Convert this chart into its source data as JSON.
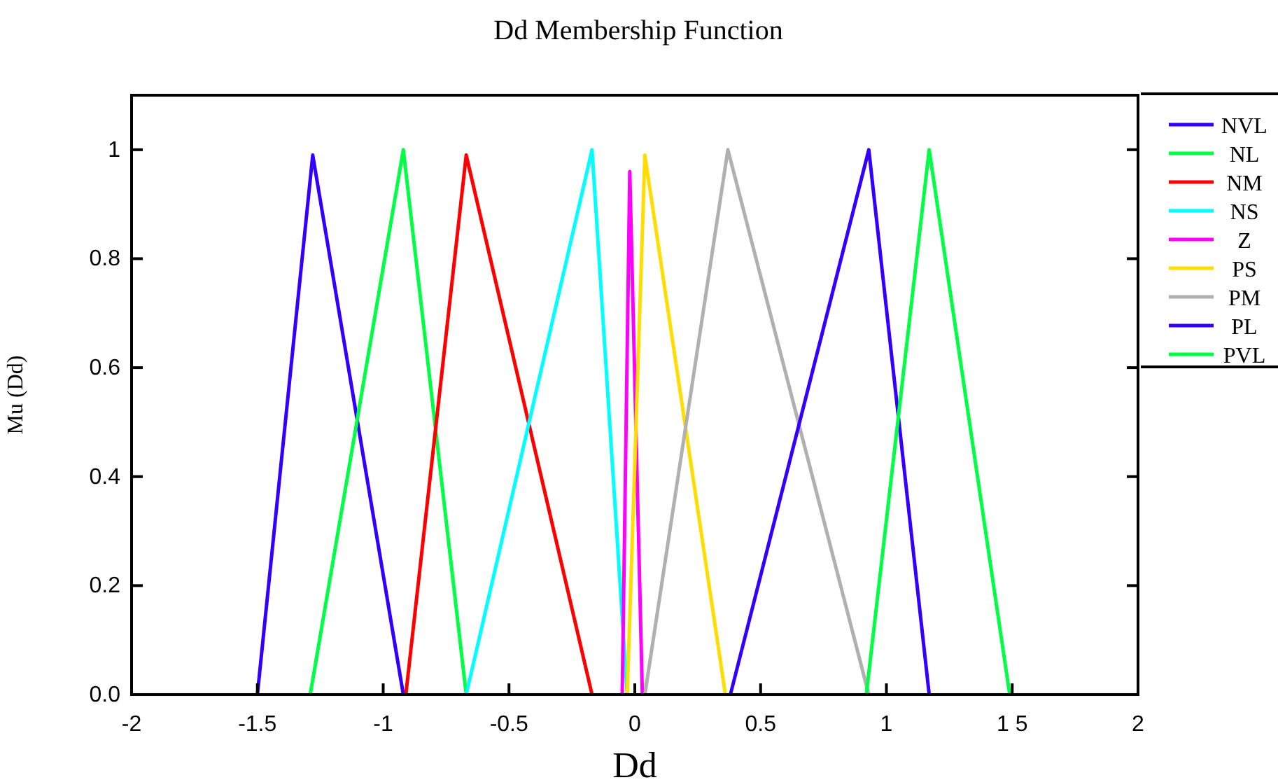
{
  "chart_data": {
    "type": "line",
    "title": "Dd Membership Function",
    "xlabel": "Dd",
    "ylabel": "Mu (Dd)",
    "xlim": [
      -2,
      2
    ],
    "ylim": [
      0,
      1.1
    ],
    "xticks": [
      -2,
      -1.5,
      -1,
      -0.5,
      0,
      0.5,
      1,
      {
        "value": 1.5,
        "label": "1 5"
      },
      2
    ],
    "yticks": [
      {
        "value": 0,
        "label": "0.0"
      },
      0.2,
      0.4,
      0.6,
      0.8,
      1
    ],
    "grid": false,
    "legend": "right",
    "marker": "none",
    "line_style": "solid",
    "series": [
      {
        "name": "NVL",
        "color": "#3300ff",
        "x": [
          -1.5,
          -1.28,
          -0.92
        ],
        "values": [
          0,
          0.99,
          0
        ]
      },
      {
        "name": "NL",
        "color": "#00ff44",
        "x": [
          -1.29,
          -0.92,
          -0.67
        ],
        "values": [
          0,
          1,
          0
        ]
      },
      {
        "name": "NM",
        "color": "#ff0000",
        "x": [
          -0.91,
          -0.67,
          -0.17
        ],
        "values": [
          0,
          0.99,
          0
        ]
      },
      {
        "name": "NS",
        "color": "#00ffff",
        "x": [
          -0.67,
          -0.17,
          -0.03
        ],
        "values": [
          0,
          1,
          0
        ]
      },
      {
        "name": "Z",
        "color": "#ff00ff",
        "x": [
          -0.05,
          -0.02,
          0.03
        ],
        "values": [
          0,
          0.96,
          0
        ]
      },
      {
        "name": "PS",
        "color": "#ffdd00",
        "x": [
          -0.03,
          0.04,
          0.36
        ],
        "values": [
          0,
          0.99,
          0
        ]
      },
      {
        "name": "PM",
        "color": "#b0b0b0",
        "x": [
          0.04,
          0.37,
          0.93
        ],
        "values": [
          0,
          1,
          0
        ]
      },
      {
        "name": "PL",
        "color": "#3300ff",
        "x": [
          0.38,
          0.93,
          1.17
        ],
        "values": [
          0,
          1,
          0
        ]
      },
      {
        "name": "PVL",
        "color": "#00ff44",
        "x": [
          0.92,
          1.17,
          1.49
        ],
        "values": [
          0,
          1,
          0
        ]
      }
    ]
  }
}
